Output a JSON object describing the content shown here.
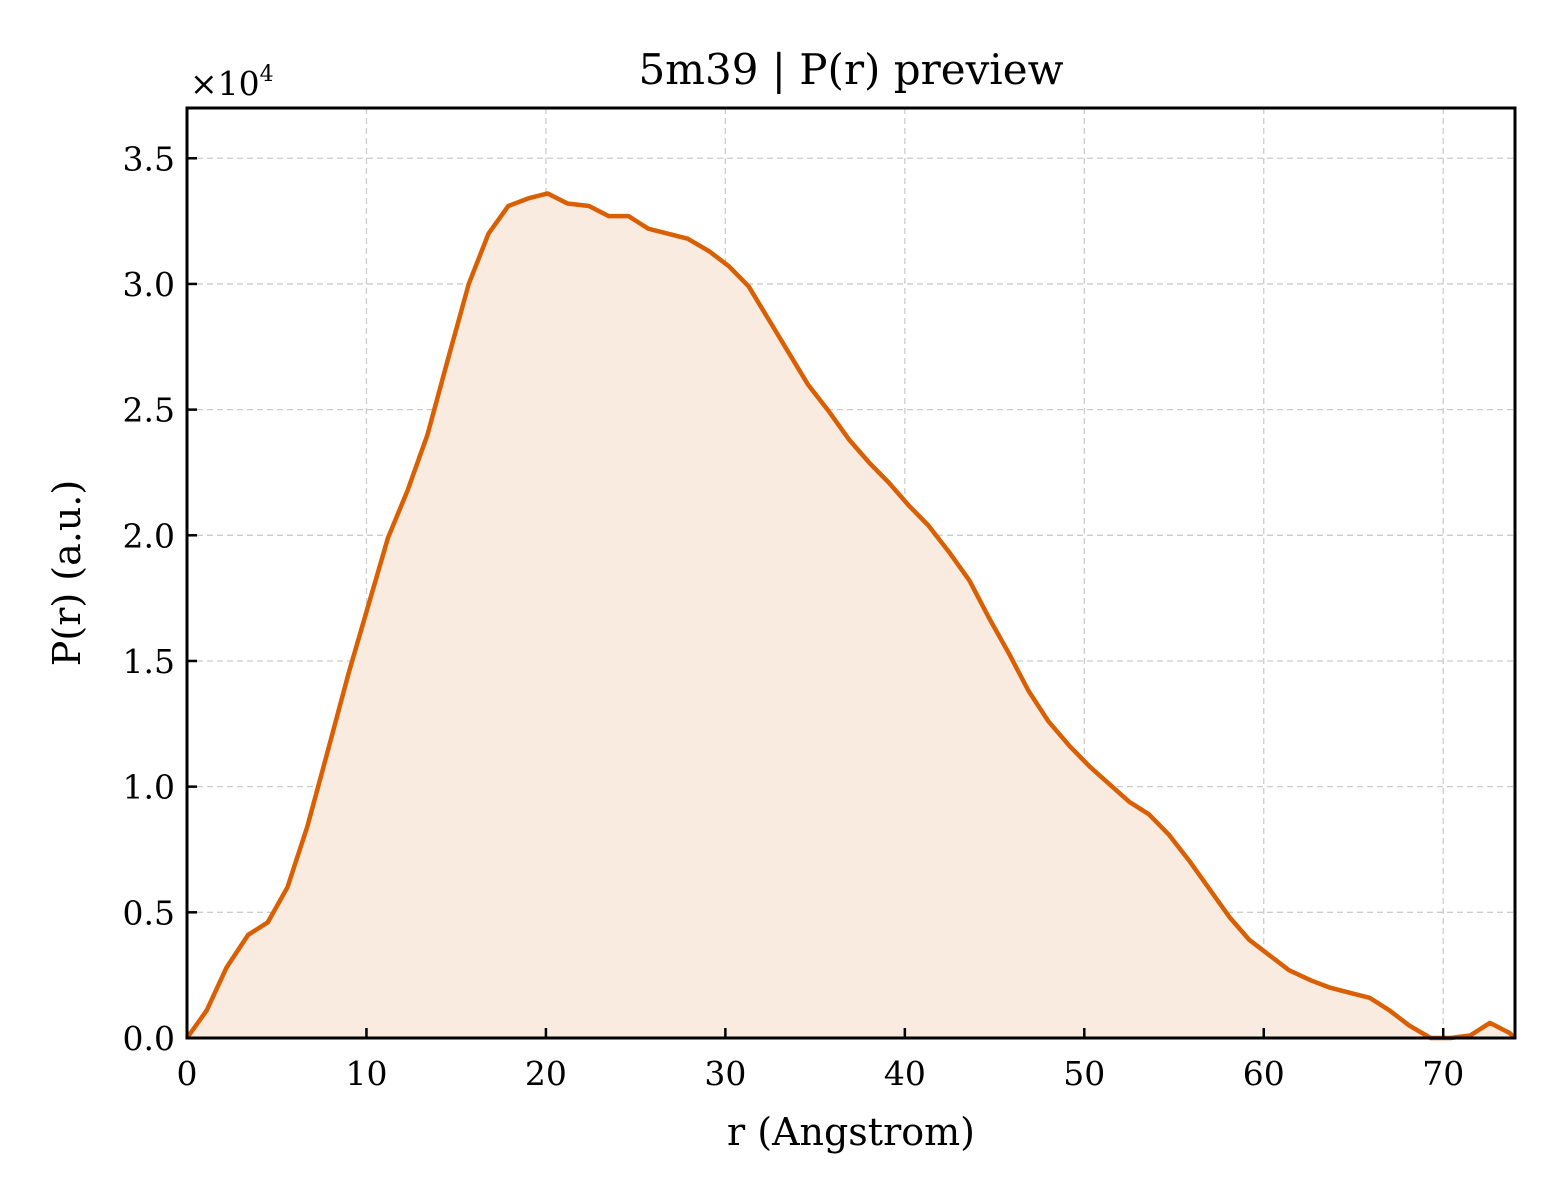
{
  "chart_data": {
    "type": "area",
    "title": "5m39 | P(r) preview",
    "xlabel": "r (Angstrom)",
    "ylabel": "P(r) (a.u.)",
    "y_multiplier_base": "×10",
    "y_multiplier_exp": "4",
    "xlim": [
      0,
      74
    ],
    "ylim": [
      0,
      3.7
    ],
    "xticks": [
      0,
      10,
      20,
      30,
      40,
      50,
      60,
      70
    ],
    "xtick_labels": [
      "0",
      "10",
      "20",
      "30",
      "40",
      "50",
      "60",
      "70"
    ],
    "yticks": [
      0,
      0.5,
      1.0,
      1.5,
      2.0,
      2.5,
      3.0,
      3.5
    ],
    "ytick_labels": [
      "0.0",
      "0.5",
      "1.0",
      "1.5",
      "2.0",
      "2.5",
      "3.0",
      "3.5"
    ],
    "grid": true,
    "line_color": "#d95f02",
    "fill_color": "#f9ebe0",
    "series": [
      {
        "x": [
          0.0,
          1.1,
          2.2,
          3.4,
          4.5,
          5.6,
          6.7,
          7.8,
          9.0,
          10.1,
          11.2,
          12.3,
          13.4,
          14.5,
          15.7,
          16.8,
          17.9,
          19.0,
          20.1,
          21.2,
          22.4,
          23.5,
          24.6,
          25.7,
          26.8,
          27.9,
          29.1,
          30.2,
          31.3,
          32.4,
          33.5,
          34.6,
          35.8,
          36.9,
          38.0,
          39.1,
          40.2,
          41.3,
          42.5,
          43.6,
          44.7,
          45.8,
          46.9,
          48.0,
          49.2,
          50.3,
          51.4,
          52.5,
          53.6,
          54.7,
          55.9,
          57.0,
          58.1,
          59.2,
          60.3,
          61.4,
          62.6,
          63.7,
          64.8,
          65.9,
          67.0,
          68.1,
          69.3,
          70.4,
          71.5,
          72.6,
          73.7,
          74.0
        ],
        "y": [
          0.0,
          0.11,
          0.28,
          0.41,
          0.46,
          0.6,
          0.84,
          1.13,
          1.45,
          1.72,
          1.99,
          2.18,
          2.4,
          2.69,
          3.0,
          3.2,
          3.31,
          3.34,
          3.36,
          3.32,
          3.31,
          3.27,
          3.27,
          3.22,
          3.2,
          3.18,
          3.13,
          3.07,
          2.99,
          2.86,
          2.73,
          2.6,
          2.49,
          2.38,
          2.29,
          2.21,
          2.12,
          2.04,
          1.93,
          1.82,
          1.67,
          1.53,
          1.38,
          1.26,
          1.16,
          1.08,
          1.01,
          0.94,
          0.89,
          0.81,
          0.7,
          0.59,
          0.48,
          0.39,
          0.33,
          0.27,
          0.23,
          0.2,
          0.18,
          0.16,
          0.11,
          0.05,
          0.0,
          -0.02,
          0.01,
          0.06,
          0.02,
          0.0
        ]
      }
    ]
  }
}
